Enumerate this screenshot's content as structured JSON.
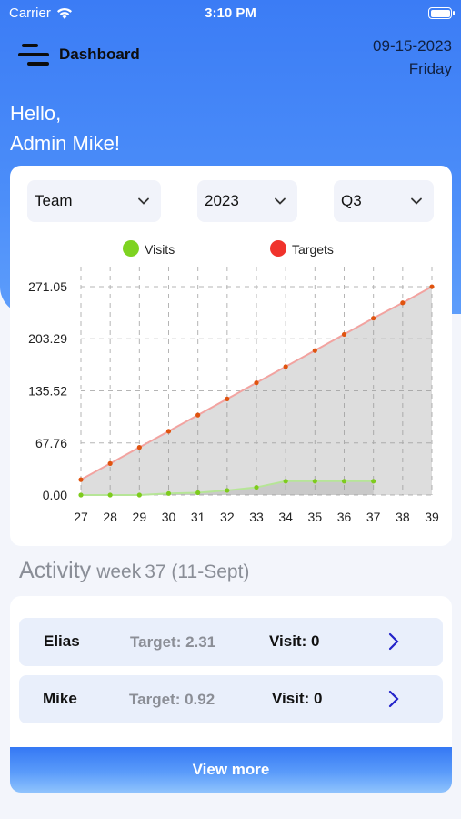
{
  "status_bar": {
    "carrier": "Carrier",
    "time": "3:10 PM"
  },
  "header": {
    "title": "Dashboard",
    "date": "09-15-2023",
    "weekday": "Friday"
  },
  "greeting": {
    "line1": "Hello,",
    "line2": "Admin Mike!"
  },
  "filters": {
    "team": "Team",
    "year": "2023",
    "quarter": "Q3"
  },
  "colors": {
    "header_blue": "#3b7cf5",
    "visits": "#7ed321",
    "targets": "#f0332c"
  },
  "chart_data": {
    "type": "area",
    "legend": [
      "Visits",
      "Targets"
    ],
    "legend_position": "top",
    "x": [
      27,
      28,
      29,
      30,
      31,
      32,
      33,
      34,
      35,
      36,
      37,
      38,
      39
    ],
    "y_ticks": [
      "0.00",
      "67.76",
      "135.52",
      "203.29",
      "271.05"
    ],
    "ylim": [
      0,
      271.05
    ],
    "grid": true,
    "series": [
      {
        "name": "Visits",
        "values": [
          0,
          0,
          0,
          2,
          3,
          6,
          10,
          18,
          18,
          18,
          18,
          null,
          null
        ]
      },
      {
        "name": "Targets",
        "values": [
          20,
          41,
          62,
          83,
          104,
          125,
          146,
          167,
          188,
          209,
          230,
          250,
          271
        ]
      }
    ]
  },
  "activity": {
    "title": "Activity",
    "week_label": "week",
    "week_detail": "37 (11-Sept)"
  },
  "rows": [
    {
      "name": "Elias",
      "target": "Target: 2.31",
      "visit": "Visit: 0"
    },
    {
      "name": "Mike",
      "target": "Target: 0.92",
      "visit": "Visit: 0"
    }
  ],
  "view_more_label": "View more"
}
